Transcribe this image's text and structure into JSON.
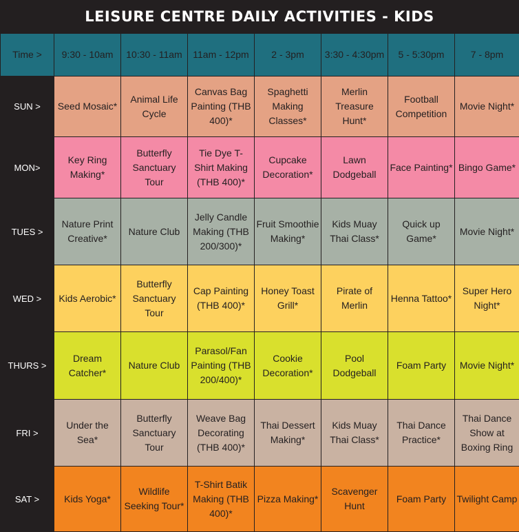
{
  "title": "LEISURE CENTRE DAILY ACTIVITIES - KIDS",
  "header": {
    "corner": "Time >",
    "slots": [
      "9:30 - 10am",
      "10:30 - 11am",
      "11am - 12pm",
      "2 - 3pm",
      "3:30 - 4:30pm",
      "5 - 5:30pm",
      "7 - 8pm"
    ]
  },
  "rows": [
    {
      "day": "SUN >",
      "cells": [
        "Seed Mosaic*",
        "Animal Life Cycle",
        "Canvas Bag Painting (THB 400)*",
        "Spaghetti Making Classes*",
        "Merlin Treasure Hunt*",
        "Football Competition",
        "Movie Night*"
      ]
    },
    {
      "day": "MON>",
      "cells": [
        "Key Ring Making*",
        "Butterfly Sanctuary Tour",
        "Tie Dye T-Shirt Making (THB 400)*",
        "Cupcake Decoration*",
        "Lawn Dodgeball",
        "Face Painting*",
        "Bingo Game*"
      ]
    },
    {
      "day": "TUES >",
      "cells": [
        "Nature Print Creative*",
        "Nature Club",
        "Jelly Candle Making (THB 200/300)*",
        "Fruit Smoothie Making*",
        "Kids Muay Thai Class*",
        "Quick up Game*",
        "Movie Night*"
      ]
    },
    {
      "day": "WED >",
      "cells": [
        "Kids Aerobic*",
        "Butterfly Sanctuary Tour",
        "Cap Painting (THB 400)*",
        "Honey Toast Grill*",
        "Pirate of Merlin",
        "Henna Tattoo*",
        "Super Hero Night*"
      ]
    },
    {
      "day": "THURS >",
      "cells": [
        "Dream Catcher*",
        "Nature Club",
        "Parasol/Fan Painting (THB 200/400)*",
        "Cookie Decoration*",
        "Pool Dodgeball",
        "Foam Party",
        "Movie Night*"
      ]
    },
    {
      "day": "FRI >",
      "cells": [
        "Under the Sea*",
        "Butterfly Sanctuary Tour",
        "Weave Bag Decorating (THB 400)*",
        "Thai Dessert Making*",
        "Kids Muay Thai Class*",
        "Thai Dance Practice*",
        "Thai Dance Show at Boxing Ring"
      ]
    },
    {
      "day": "SAT >",
      "cells": [
        "Kids Yoga*",
        "Wildlife Seeking Tour*",
        "T-Shirt Batik Making (THB 400)*",
        "Pizza Making*",
        "Scavenger Hunt",
        "Foam Party",
        "Twilight Camp"
      ]
    }
  ],
  "colors": {
    "background": "#231f20",
    "header": "#1f6f7f",
    "sun": "#e4a284",
    "mon": "#f48aa6",
    "tues": "#a7b1a6",
    "wed": "#fdd15e",
    "thurs": "#d9e02d",
    "fri": "#c9b2a2",
    "sat": "#f2841f"
  }
}
